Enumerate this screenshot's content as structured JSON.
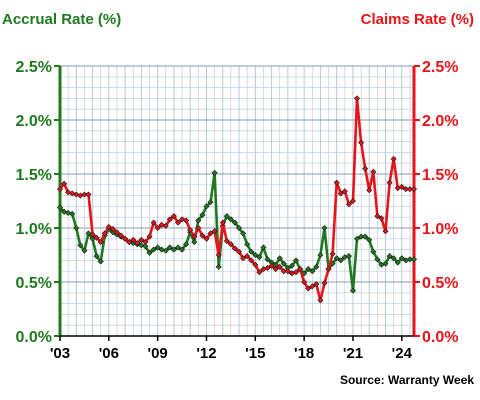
{
  "chart_data": {
    "type": "line",
    "title_left": "Accrual Rate (%)",
    "title_right": "Claims Rate (%)",
    "source": "Source: Warranty Week",
    "x_tick_labels": [
      "'03",
      "'06",
      "'09",
      "'12",
      "'15",
      "'18",
      "'21",
      "'24"
    ],
    "x_tick_years": [
      2003,
      2006,
      2009,
      2012,
      2015,
      2018,
      2021,
      2024
    ],
    "xlim": [
      2003,
      2024.75
    ],
    "ylim_left": [
      0,
      2.5
    ],
    "ylim_right": [
      0,
      2.5
    ],
    "y_tick_labels_left": [
      "2.5%",
      "2.0%",
      "1.5%",
      "1.0%",
      "0.5%",
      "0.0%"
    ],
    "y_tick_labels_right": [
      "2.5%",
      "2.0%",
      "1.5%",
      "1.0%",
      "0.5%",
      "0.0%"
    ],
    "y_tick_values": [
      2.5,
      2.0,
      1.5,
      1.0,
      0.5,
      0.0
    ],
    "grid": true,
    "colors": {
      "accrual": "#1f7a1f",
      "claims": "#e8141a",
      "grid": "#b8c8dc"
    },
    "series": [
      {
        "name": "Accrual Rate (%)",
        "axis": "left",
        "x": [
          2003.0,
          2003.25,
          2003.5,
          2003.75,
          2004.0,
          2004.25,
          2004.5,
          2004.75,
          2005.0,
          2005.25,
          2005.5,
          2005.75,
          2006.0,
          2006.25,
          2006.5,
          2006.75,
          2007.0,
          2007.25,
          2007.5,
          2007.75,
          2008.0,
          2008.25,
          2008.5,
          2008.75,
          2009.0,
          2009.25,
          2009.5,
          2009.75,
          2010.0,
          2010.25,
          2010.5,
          2010.75,
          2011.0,
          2011.25,
          2011.5,
          2011.75,
          2012.0,
          2012.25,
          2012.5,
          2012.75,
          2013.0,
          2013.25,
          2013.5,
          2013.75,
          2014.0,
          2014.25,
          2014.5,
          2014.75,
          2015.0,
          2015.25,
          2015.5,
          2015.75,
          2016.0,
          2016.25,
          2016.5,
          2016.75,
          2017.0,
          2017.25,
          2017.5,
          2017.75,
          2018.0,
          2018.25,
          2018.5,
          2018.75,
          2019.0,
          2019.25,
          2019.5,
          2019.75,
          2020.0,
          2020.25,
          2020.5,
          2020.75,
          2021.0,
          2021.25,
          2021.5,
          2021.75,
          2022.0,
          2022.25,
          2022.5,
          2022.75,
          2023.0,
          2023.25,
          2023.5,
          2023.75,
          2024.0,
          2024.25,
          2024.5,
          2024.75
        ],
        "values": [
          1.19,
          1.15,
          1.14,
          1.13,
          1.0,
          0.84,
          0.79,
          0.95,
          0.9,
          0.74,
          0.69,
          0.93,
          0.99,
          0.96,
          0.94,
          0.92,
          0.9,
          0.87,
          0.86,
          0.85,
          0.84,
          0.83,
          0.77,
          0.8,
          0.82,
          0.8,
          0.79,
          0.82,
          0.8,
          0.82,
          0.8,
          0.85,
          0.96,
          0.87,
          1.07,
          1.12,
          1.2,
          1.24,
          1.51,
          0.64,
          1.02,
          1.11,
          1.08,
          1.05,
          1.0,
          0.95,
          0.85,
          0.78,
          0.75,
          0.73,
          0.82,
          0.71,
          0.68,
          0.66,
          0.72,
          0.67,
          0.63,
          0.65,
          0.7,
          0.62,
          0.58,
          0.62,
          0.6,
          0.64,
          0.75,
          1.0,
          0.62,
          0.67,
          0.72,
          0.7,
          0.73,
          0.74,
          0.42,
          0.9,
          0.92,
          0.92,
          0.89,
          0.78,
          0.71,
          0.66,
          0.67,
          0.74,
          0.72,
          0.68,
          0.72,
          0.7,
          0.71,
          0.71
        ]
      },
      {
        "name": "Claims Rate (%)",
        "axis": "right",
        "x": [
          2003.0,
          2003.25,
          2003.5,
          2003.75,
          2004.0,
          2004.25,
          2004.5,
          2004.75,
          2005.0,
          2005.25,
          2005.5,
          2005.75,
          2006.0,
          2006.25,
          2006.5,
          2006.75,
          2007.0,
          2007.25,
          2007.5,
          2007.75,
          2008.0,
          2008.25,
          2008.5,
          2008.75,
          2009.0,
          2009.25,
          2009.5,
          2009.75,
          2010.0,
          2010.25,
          2010.5,
          2010.75,
          2011.0,
          2011.25,
          2011.5,
          2011.75,
          2012.0,
          2012.25,
          2012.5,
          2012.75,
          2013.0,
          2013.25,
          2013.5,
          2013.75,
          2014.0,
          2014.25,
          2014.5,
          2014.75,
          2015.0,
          2015.25,
          2015.5,
          2015.75,
          2016.0,
          2016.25,
          2016.5,
          2016.75,
          2017.0,
          2017.25,
          2017.5,
          2017.75,
          2018.0,
          2018.25,
          2018.5,
          2018.75,
          2019.0,
          2019.25,
          2019.5,
          2019.75,
          2020.0,
          2020.25,
          2020.5,
          2020.75,
          2021.0,
          2021.25,
          2021.5,
          2021.75,
          2022.0,
          2022.25,
          2022.5,
          2022.75,
          2023.0,
          2023.25,
          2023.5,
          2023.75,
          2024.0,
          2024.25,
          2024.5,
          2024.75
        ],
        "values": [
          1.36,
          1.41,
          1.33,
          1.32,
          1.31,
          1.3,
          1.31,
          1.31,
          0.94,
          0.91,
          0.87,
          0.95,
          1.01,
          0.99,
          0.96,
          0.93,
          0.9,
          0.87,
          0.89,
          0.86,
          0.89,
          0.87,
          0.92,
          1.05,
          1.0,
          1.03,
          1.02,
          1.08,
          1.11,
          1.05,
          1.08,
          1.07,
          0.98,
          0.92,
          1.0,
          0.93,
          0.9,
          0.95,
          0.97,
          0.75,
          1.05,
          0.88,
          0.85,
          0.81,
          0.78,
          0.72,
          0.74,
          0.7,
          0.66,
          0.59,
          0.62,
          0.63,
          0.65,
          0.62,
          0.64,
          0.6,
          0.6,
          0.58,
          0.59,
          0.62,
          0.5,
          0.44,
          0.46,
          0.48,
          0.33,
          0.49,
          0.62,
          0.76,
          1.42,
          1.32,
          1.34,
          1.22,
          1.25,
          2.2,
          1.79,
          1.55,
          1.35,
          1.52,
          1.11,
          1.09,
          0.97,
          1.42,
          1.64,
          1.37,
          1.38,
          1.36,
          1.36,
          1.36
        ]
      }
    ]
  }
}
